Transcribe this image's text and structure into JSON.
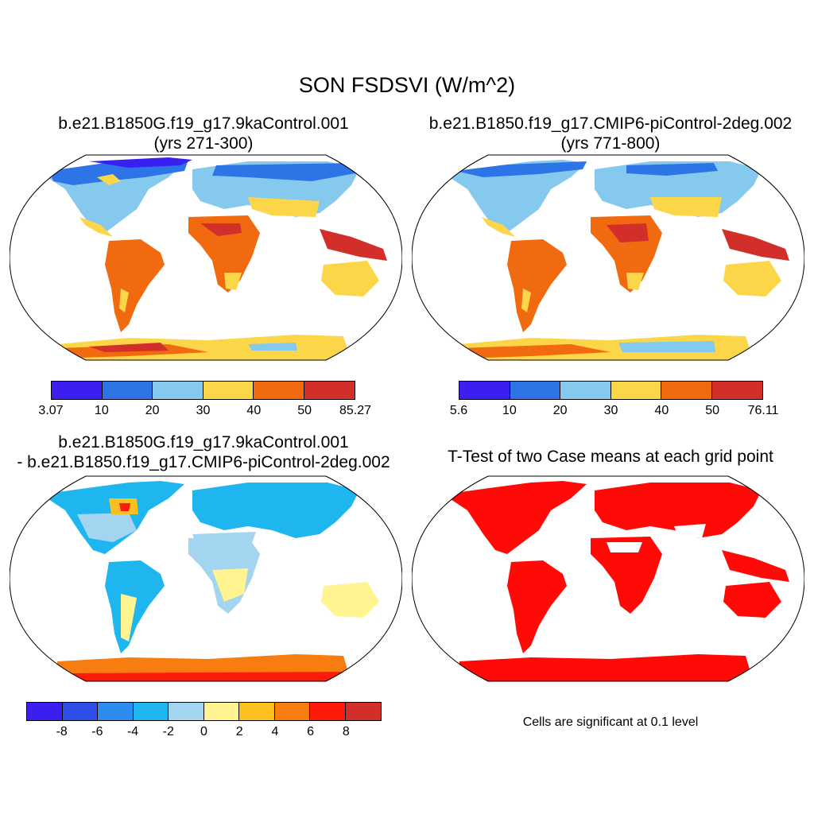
{
  "figure": {
    "main_title": "SON FSDSVI (W/m^2)",
    "panels": [
      {
        "title_line1": "b.e21.B1850G.f19_g17.9kaControl.001",
        "title_line2": "(yrs 271-300)"
      },
      {
        "title_line1": "b.e21.B1850.f19_g17.CMIP6-piControl-2deg.002",
        "title_line2": "(yrs 771-800)"
      },
      {
        "title_line1": "b.e21.B1850G.f19_g17.9kaControl.001",
        "title_line2": "- b.e21.B1850.f19_g17.CMIP6-piControl-2deg.002"
      },
      {
        "title_line1": "T-Test of two Case means at each grid point",
        "note": "Cells are significant at 0.1 level"
      }
    ]
  },
  "colorbars": [
    {
      "labels": [
        "3.07",
        "10",
        "20",
        "30",
        "40",
        "50",
        "85.27"
      ],
      "colors": [
        "#3a1ff0",
        "#2d74e6",
        "#86c9ee",
        "#fbd649",
        "#f26a10",
        "#d32f2a"
      ]
    },
    {
      "labels": [
        "5.6",
        "10",
        "20",
        "30",
        "40",
        "50",
        "76.11"
      ],
      "colors": [
        "#3a1ff0",
        "#2d74e6",
        "#86c9ee",
        "#fbd649",
        "#f26a10",
        "#d32f2a"
      ]
    },
    {
      "labels": [
        "-8",
        "-6",
        "-4",
        "-2",
        "0",
        "2",
        "4",
        "6",
        "8"
      ],
      "colors": [
        "#3a1ff0",
        "#2d4fe6",
        "#2d8cf0",
        "#1fb6f0",
        "#a3d4f0",
        "#fff490",
        "#fbbf1f",
        "#f77d10",
        "#ff1b0b",
        "#d32f2a"
      ]
    }
  ]
}
